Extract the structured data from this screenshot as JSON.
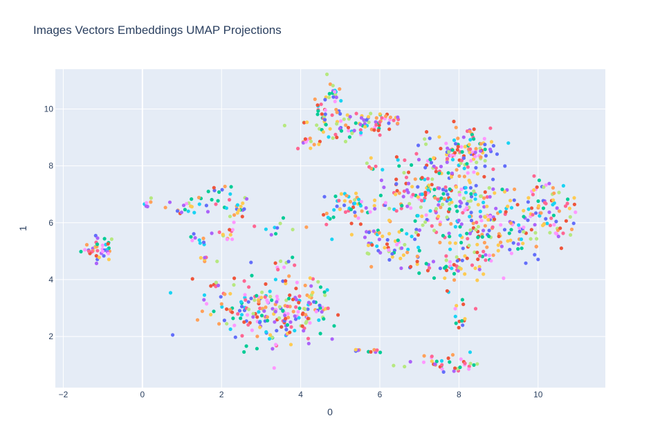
{
  "chart_data": {
    "type": "scatter",
    "title": "Images Vectors Embeddings UMAP Projections",
    "xlabel": "0",
    "ylabel": "1",
    "xlim": [
      -2.2,
      11.7
    ],
    "ylim": [
      0.2,
      11.4
    ],
    "x_ticks": [
      -2,
      0,
      2,
      4,
      6,
      8,
      10
    ],
    "y_ticks": [
      2,
      4,
      6,
      8,
      10
    ],
    "grid": true,
    "legend": "none",
    "colors": [
      "#636efa",
      "#ef553b",
      "#00cc96",
      "#ab63fa",
      "#ffa15a",
      "#19d3f3",
      "#ff6692",
      "#b6e880",
      "#ff97ff",
      "#fecb52"
    ],
    "plot_bgcolor": "#e5ecf6",
    "clusters": [
      {
        "cx": -1.1,
        "cy": 5.1,
        "sx": 0.22,
        "sy": 0.22,
        "n": 40
      },
      {
        "cx": 0.1,
        "cy": 6.75,
        "sx": 0.08,
        "sy": 0.08,
        "n": 6
      },
      {
        "cx": 1.2,
        "cy": 6.5,
        "sx": 0.35,
        "sy": 0.2,
        "n": 22
      },
      {
        "cx": 1.9,
        "cy": 6.9,
        "sx": 0.25,
        "sy": 0.25,
        "n": 12
      },
      {
        "cx": 2.45,
        "cy": 6.5,
        "sx": 0.15,
        "sy": 0.2,
        "n": 16
      },
      {
        "cx": 1.4,
        "cy": 5.4,
        "sx": 0.15,
        "sy": 0.12,
        "n": 10
      },
      {
        "cx": 2.2,
        "cy": 5.6,
        "sx": 0.15,
        "sy": 0.2,
        "n": 10
      },
      {
        "cx": 1.6,
        "cy": 4.75,
        "sx": 0.1,
        "sy": 0.1,
        "n": 6
      },
      {
        "cx": 1.75,
        "cy": 3.9,
        "sx": 0.15,
        "sy": 0.1,
        "n": 6
      },
      {
        "cx": 3.35,
        "cy": 5.8,
        "sx": 0.3,
        "sy": 0.2,
        "n": 10
      },
      {
        "cx": 2.8,
        "cy": 2.9,
        "sx": 0.6,
        "sy": 0.55,
        "n": 140
      },
      {
        "cx": 3.7,
        "cy": 2.6,
        "sx": 0.35,
        "sy": 0.6,
        "n": 50
      },
      {
        "cx": 4.35,
        "cy": 3.1,
        "sx": 0.25,
        "sy": 0.45,
        "n": 40
      },
      {
        "cx": 3.6,
        "cy": 4.3,
        "sx": 0.3,
        "sy": 0.3,
        "n": 14
      },
      {
        "cx": 4.1,
        "cy": 8.8,
        "sx": 0.15,
        "sy": 0.1,
        "n": 10
      },
      {
        "cx": 4.6,
        "cy": 9.8,
        "sx": 0.25,
        "sy": 0.45,
        "n": 45
      },
      {
        "cx": 4.85,
        "cy": 10.6,
        "sx": 0.1,
        "sy": 0.3,
        "n": 14
      },
      {
        "cx": 5.1,
        "cy": 9.3,
        "sx": 0.2,
        "sy": 0.25,
        "n": 18
      },
      {
        "cx": 5.6,
        "cy": 9.5,
        "sx": 0.35,
        "sy": 0.2,
        "n": 30
      },
      {
        "cx": 6.2,
        "cy": 9.5,
        "sx": 0.2,
        "sy": 0.25,
        "n": 18
      },
      {
        "cx": 5.8,
        "cy": 8.1,
        "sx": 0.1,
        "sy": 0.15,
        "n": 6
      },
      {
        "cx": 5.3,
        "cy": 6.6,
        "sx": 0.45,
        "sy": 0.35,
        "n": 60
      },
      {
        "cx": 5.85,
        "cy": 5.3,
        "sx": 0.2,
        "sy": 0.3,
        "n": 16
      },
      {
        "cx": 6.35,
        "cy": 5.0,
        "sx": 0.35,
        "sy": 0.3,
        "n": 30
      },
      {
        "cx": 6.5,
        "cy": 7.2,
        "sx": 0.3,
        "sy": 0.4,
        "n": 14
      },
      {
        "cx": 7.3,
        "cy": 6.9,
        "sx": 0.55,
        "sy": 0.8,
        "n": 130
      },
      {
        "cx": 7.9,
        "cy": 8.3,
        "sx": 0.45,
        "sy": 0.4,
        "n": 70
      },
      {
        "cx": 8.5,
        "cy": 8.7,
        "sx": 0.3,
        "sy": 0.35,
        "n": 40
      },
      {
        "cx": 8.5,
        "cy": 6.2,
        "sx": 0.6,
        "sy": 0.9,
        "n": 140
      },
      {
        "cx": 7.8,
        "cy": 4.5,
        "sx": 0.4,
        "sy": 0.2,
        "n": 40
      },
      {
        "cx": 9.3,
        "cy": 5.6,
        "sx": 0.45,
        "sy": 0.6,
        "n": 60
      },
      {
        "cx": 10.4,
        "cy": 6.3,
        "sx": 0.35,
        "sy": 0.45,
        "n": 60
      },
      {
        "cx": 10.15,
        "cy": 7.25,
        "sx": 0.15,
        "sy": 0.1,
        "n": 8
      },
      {
        "cx": 8.0,
        "cy": 2.6,
        "sx": 0.2,
        "sy": 0.35,
        "n": 14
      },
      {
        "cx": 7.4,
        "cy": 1.15,
        "sx": 0.35,
        "sy": 0.15,
        "n": 24
      },
      {
        "cx": 8.0,
        "cy": 0.9,
        "sx": 0.2,
        "sy": 0.15,
        "n": 12
      },
      {
        "cx": 5.45,
        "cy": 1.5,
        "sx": 0.05,
        "sy": 0.03,
        "n": 5
      },
      {
        "cx": 5.85,
        "cy": 1.45,
        "sx": 0.08,
        "sy": 0.04,
        "n": 6
      }
    ]
  }
}
